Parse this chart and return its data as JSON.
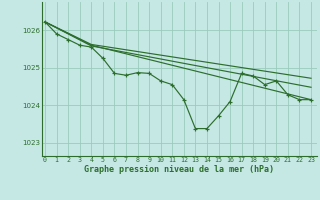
{
  "title": "Graphe pression niveau de la mer (hPa)",
  "bg_color": "#c5e8e4",
  "grid_color": "#99ccbb",
  "line_color": "#2d6e2d",
  "x_ticks": [
    0,
    1,
    2,
    3,
    4,
    5,
    6,
    7,
    8,
    9,
    10,
    11,
    12,
    13,
    14,
    15,
    16,
    17,
    18,
    19,
    20,
    21,
    22,
    23
  ],
  "y_ticks": [
    1023,
    1024,
    1025,
    1026
  ],
  "ylim": [
    1022.65,
    1026.75
  ],
  "xlim": [
    -0.3,
    23.5
  ],
  "main_y": [
    1026.22,
    1025.9,
    1025.75,
    1025.6,
    1025.55,
    1025.25,
    1024.85,
    1024.8,
    1024.87,
    1024.85,
    1024.65,
    1024.55,
    1024.15,
    1023.38,
    1023.38,
    1023.72,
    1024.1,
    1024.85,
    1024.78,
    1024.55,
    1024.65,
    1024.28,
    1024.15,
    1024.15
  ],
  "trend_lines": [
    {
      "x": [
        0,
        4,
        23
      ],
      "y": [
        1026.22,
        1025.6,
        1024.15
      ]
    },
    {
      "x": [
        0,
        4,
        23
      ],
      "y": [
        1026.22,
        1025.58,
        1024.48
      ]
    },
    {
      "x": [
        0,
        4,
        23
      ],
      "y": [
        1026.22,
        1025.62,
        1024.72
      ]
    }
  ],
  "title_fontsize": 6.0,
  "tick_fontsize": 4.8
}
